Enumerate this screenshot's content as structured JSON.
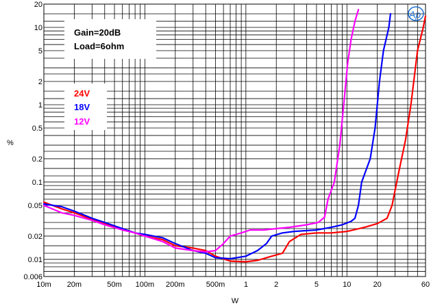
{
  "chart_data": {
    "type": "line",
    "xscale": "log",
    "yscale": "log",
    "xlim": [
      0.01,
      60
    ],
    "ylim": [
      0.006,
      20
    ],
    "xlabel": "W",
    "ylabel": "%",
    "grid": true,
    "x_ticks": [
      {
        "v": 0.01,
        "label": "10m"
      },
      {
        "v": 0.02,
        "label": "20m"
      },
      {
        "v": 0.05,
        "label": "50m"
      },
      {
        "v": 0.1,
        "label": "100m"
      },
      {
        "v": 0.2,
        "label": "200m"
      },
      {
        "v": 0.5,
        "label": "500m"
      },
      {
        "v": 1,
        "label": "1"
      },
      {
        "v": 2,
        "label": "2"
      },
      {
        "v": 5,
        "label": "5"
      },
      {
        "v": 10,
        "label": "10"
      },
      {
        "v": 20,
        "label": "20"
      },
      {
        "v": 60,
        "label": "60"
      }
    ],
    "y_ticks": [
      {
        "v": 20,
        "label": "20"
      },
      {
        "v": 10,
        "label": "10"
      },
      {
        "v": 5,
        "label": "5"
      },
      {
        "v": 2,
        "label": "2"
      },
      {
        "v": 1,
        "label": "1"
      },
      {
        "v": 0.5,
        "label": "0.5"
      },
      {
        "v": 0.2,
        "label": "0.2"
      },
      {
        "v": 0.1,
        "label": "0.1"
      },
      {
        "v": 0.05,
        "label": "0.05"
      },
      {
        "v": 0.02,
        "label": "0.02"
      },
      {
        "v": 0.01,
        "label": "0.01"
      },
      {
        "v": 0.006,
        "label": "0.006"
      }
    ],
    "annotation": {
      "line1": "Gain=20dB",
      "line2": "Load=6ohm"
    },
    "series": [
      {
        "name": "24V",
        "color": "#ff0000",
        "points": [
          [
            0.01,
            0.055
          ],
          [
            0.015,
            0.045
          ],
          [
            0.02,
            0.04
          ],
          [
            0.03,
            0.033
          ],
          [
            0.04,
            0.029
          ],
          [
            0.06,
            0.025
          ],
          [
            0.08,
            0.022
          ],
          [
            0.1,
            0.02
          ],
          [
            0.15,
            0.018
          ],
          [
            0.2,
            0.015
          ],
          [
            0.3,
            0.014
          ],
          [
            0.4,
            0.013
          ],
          [
            0.5,
            0.011
          ],
          [
            0.7,
            0.0095
          ],
          [
            1,
            0.0093
          ],
          [
            1.3,
            0.0097
          ],
          [
            1.8,
            0.011
          ],
          [
            2.3,
            0.012
          ],
          [
            2.7,
            0.017
          ],
          [
            3.5,
            0.021
          ],
          [
            5,
            0.022
          ],
          [
            7,
            0.022
          ],
          [
            10,
            0.023
          ],
          [
            15,
            0.026
          ],
          [
            20,
            0.029
          ],
          [
            25,
            0.034
          ],
          [
            28,
            0.05
          ],
          [
            32,
            0.12
          ],
          [
            38,
            0.35
          ],
          [
            43,
            1.0
          ],
          [
            50,
            5.0
          ],
          [
            57,
            10.0
          ],
          [
            60,
            14.0
          ]
        ]
      },
      {
        "name": "18V",
        "color": "#0000ff",
        "points": [
          [
            0.01,
            0.052
          ],
          [
            0.015,
            0.048
          ],
          [
            0.02,
            0.042
          ],
          [
            0.03,
            0.034
          ],
          [
            0.04,
            0.03
          ],
          [
            0.06,
            0.025
          ],
          [
            0.08,
            0.022
          ],
          [
            0.1,
            0.021
          ],
          [
            0.15,
            0.019
          ],
          [
            0.2,
            0.016
          ],
          [
            0.3,
            0.013
          ],
          [
            0.4,
            0.012
          ],
          [
            0.5,
            0.0105
          ],
          [
            0.7,
            0.0102
          ],
          [
            1,
            0.011
          ],
          [
            1.3,
            0.013
          ],
          [
            1.6,
            0.016
          ],
          [
            1.8,
            0.02
          ],
          [
            2.3,
            0.022
          ],
          [
            3,
            0.023
          ],
          [
            5,
            0.024
          ],
          [
            7,
            0.026
          ],
          [
            9,
            0.028
          ],
          [
            11,
            0.031
          ],
          [
            12,
            0.034
          ],
          [
            13,
            0.05
          ],
          [
            14,
            0.1
          ],
          [
            17,
            0.2
          ],
          [
            19,
            0.5
          ],
          [
            21,
            2.0
          ],
          [
            23,
            5.0
          ],
          [
            26,
            10.0
          ],
          [
            27,
            15.0
          ]
        ]
      },
      {
        "name": "12V",
        "color": "#ff00ff",
        "points": [
          [
            0.01,
            0.05
          ],
          [
            0.015,
            0.04
          ],
          [
            0.02,
            0.037
          ],
          [
            0.03,
            0.032
          ],
          [
            0.04,
            0.028
          ],
          [
            0.06,
            0.024
          ],
          [
            0.08,
            0.022
          ],
          [
            0.1,
            0.02
          ],
          [
            0.15,
            0.017
          ],
          [
            0.2,
            0.014
          ],
          [
            0.3,
            0.013
          ],
          [
            0.4,
            0.0125
          ],
          [
            0.5,
            0.013
          ],
          [
            0.6,
            0.016
          ],
          [
            0.7,
            0.02
          ],
          [
            0.9,
            0.022
          ],
          [
            1.1,
            0.024
          ],
          [
            1.5,
            0.024
          ],
          [
            2,
            0.025
          ],
          [
            2.7,
            0.026
          ],
          [
            4,
            0.028
          ],
          [
            5.2,
            0.03
          ],
          [
            6,
            0.035
          ],
          [
            6.5,
            0.06
          ],
          [
            7.5,
            0.1
          ],
          [
            8.5,
            0.3
          ],
          [
            9.3,
            1.0
          ],
          [
            10.2,
            3.5
          ],
          [
            11,
            7.0
          ],
          [
            12,
            12.0
          ],
          [
            13,
            17.0
          ]
        ]
      }
    ]
  }
}
